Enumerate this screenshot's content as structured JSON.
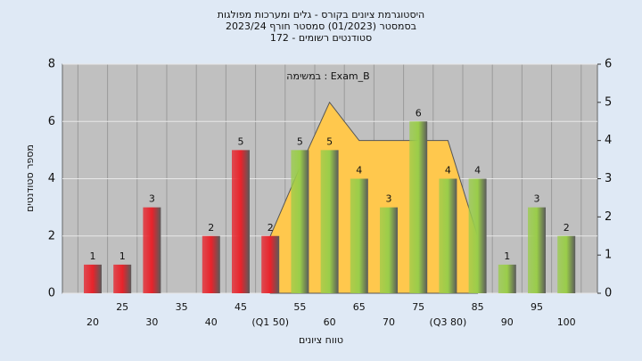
{
  "chart_data": {
    "type": "bar",
    "title": "היסטוגרמת ציונים בקורס - גלים ומערכות מפולגות",
    "subtitle": "בסמסטר  (01/2023)  סמסטר חורף 2023/24",
    "subtitle2": "סטודנטים רשומים - 172",
    "annotation": "במשימה : Exam_B",
    "x_label": "טווח ציונים",
    "y_label": "מספר סטודנטים",
    "categories": [
      "20",
      "25",
      "30",
      "35",
      "40",
      "45",
      "(Q1 50)",
      "55",
      "60",
      "65",
      "70",
      "75",
      "(Q3 80)",
      "85",
      "90",
      "95",
      "100"
    ],
    "series": [
      {
        "values": [
          1,
          1,
          3,
          0,
          2,
          5,
          2,
          5,
          5,
          4,
          3,
          6,
          4,
          4,
          1,
          3,
          2
        ],
        "colors": [
          "#e8232b",
          "#e8232b",
          "#e8232b",
          "#e8232b",
          "#e8232b",
          "#e8232b",
          "#e8232b",
          "#9acd4a",
          "#9acd4a",
          "#9acd4a",
          "#9acd4a",
          "#9acd4a",
          "#9acd4a",
          "#9acd4a",
          "#9acd4a",
          "#9acd4a",
          "#9acd4a"
        ]
      },
      {
        "axis": "y2",
        "color": "#ffc84d",
        "values": [
          null,
          null,
          null,
          null,
          null,
          null,
          1.5,
          3.3,
          5,
          4,
          4,
          4,
          4,
          1.5,
          null,
          null,
          null
        ]
      }
    ],
    "ylim": [
      0,
      8
    ],
    "yticks": [
      0,
      2,
      4,
      6,
      8
    ],
    "y2lim": [
      0,
      6
    ],
    "y2ticks": [
      0,
      1,
      2,
      3,
      4,
      5,
      6
    ],
    "grid": true
  }
}
